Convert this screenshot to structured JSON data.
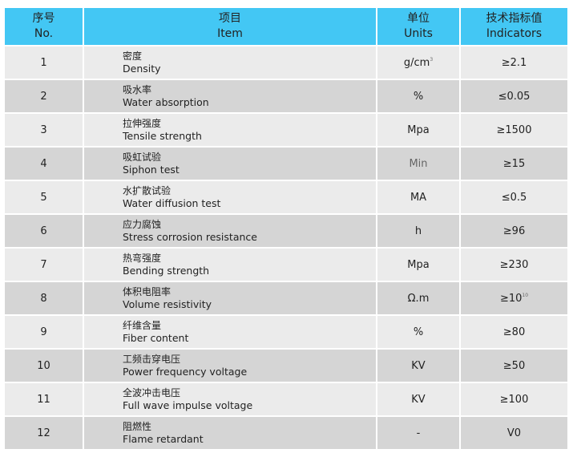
{
  "colors": {
    "header": "#43c7f4",
    "row_light": "#ebebeb",
    "row_dark": "#d5d5d5"
  },
  "header": {
    "no_cn": "序号",
    "no_en": "No.",
    "item_cn": "项目",
    "item_en": "Item",
    "units_cn": "单位",
    "units_en": "Units",
    "ind_cn": "技术指标值",
    "ind_en": "Indicators"
  },
  "rows": [
    {
      "no": "1",
      "cn": "密度",
      "en": "Density",
      "unit": "g/cm",
      "unit_sup": "3",
      "ind": "≥2.1",
      "ind_sup": ""
    },
    {
      "no": "2",
      "cn": "吸水率",
      "en": "Water absorption",
      "unit": "%",
      "unit_sup": "",
      "ind": "≤0.05",
      "ind_sup": ""
    },
    {
      "no": "3",
      "cn": "拉伸强度",
      "en": "Tensile strength",
      "unit": "Mpa",
      "unit_sup": "",
      "ind": "≥1500",
      "ind_sup": ""
    },
    {
      "no": "4",
      "cn": "吸虹试验",
      "en": "Siphon test",
      "unit": "Min",
      "unit_sup": "",
      "ind": "≥15",
      "ind_sup": ""
    },
    {
      "no": "5",
      "cn": "水扩散试验",
      "en": "Water diffusion test",
      "unit": "MA",
      "unit_sup": "",
      "ind": "≤0.5",
      "ind_sup": ""
    },
    {
      "no": "6",
      "cn": "应力腐蚀",
      "en": "Stress corrosion resistance",
      "unit": "h",
      "unit_sup": "",
      "ind": "≥96",
      "ind_sup": ""
    },
    {
      "no": "7",
      "cn": "热弯强度",
      "en": "Bending strength",
      "unit": "Mpa",
      "unit_sup": "",
      "ind": "≥230",
      "ind_sup": ""
    },
    {
      "no": "8",
      "cn": "体积电阻率",
      "en": "Volume resistivity",
      "unit": "Ω.m",
      "unit_sup": "",
      "ind": "≥10",
      "ind_sup": "10"
    },
    {
      "no": "9",
      "cn": "纤维含量",
      "en": "Fiber content",
      "unit": "%",
      "unit_sup": "",
      "ind": "≥80",
      "ind_sup": ""
    },
    {
      "no": "10",
      "cn": "工频击穿电压",
      "en": "Power frequency voltage",
      "unit": "KV",
      "unit_sup": "",
      "ind": "≥50",
      "ind_sup": ""
    },
    {
      "no": "11",
      "cn": "全波冲击电压",
      "en": "Full wave impulse voltage",
      "unit": "KV",
      "unit_sup": "",
      "ind": "≥100",
      "ind_sup": ""
    },
    {
      "no": "12",
      "cn": "阻燃性",
      "en": "Flame retardant",
      "unit": "-",
      "unit_sup": "",
      "ind": "V0",
      "ind_sup": ""
    }
  ]
}
